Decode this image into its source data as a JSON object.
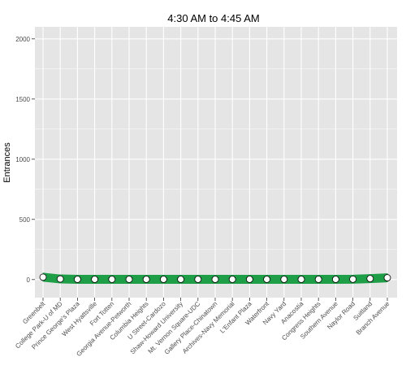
{
  "chart_data": {
    "type": "line",
    "title": "4:30 AM to 4:45 AM",
    "xlabel": "",
    "ylabel": "Entrances",
    "ylim": [
      -150,
      2100
    ],
    "yticks": [
      0,
      500,
      1000,
      1500,
      2000
    ],
    "grid": true,
    "colors": {
      "panel": "#e5e5e5",
      "grid": "#ffffff",
      "line": "#1f9e48",
      "point_fill": "#ffffff",
      "point_stroke": "#000000"
    },
    "categories": [
      "Greenbelt",
      "College Park-U of MD",
      "Prince George's Plaza",
      "West Hyattsville",
      "Fort Totten",
      "Georgia Avenue-Petworth",
      "Columbia Heights",
      "U Street-Cardozo",
      "Shaw-Howard University",
      "Mt. Vernon Square-UDC",
      "Gallery Place-Chinatown",
      "Archives-Navy Memorial",
      "L'Enfant Plaza",
      "Waterfront",
      "Navy Yard",
      "Anacostia",
      "Congress Heights",
      "Southern Avenue",
      "Naylor Road",
      "Suitland",
      "Branch Avenue"
    ],
    "series": [
      {
        "values": [
          20,
          5,
          2,
          2,
          2,
          2,
          2,
          2,
          2,
          2,
          2,
          2,
          2,
          2,
          2,
          2,
          2,
          2,
          3,
          8,
          15
        ]
      }
    ]
  }
}
